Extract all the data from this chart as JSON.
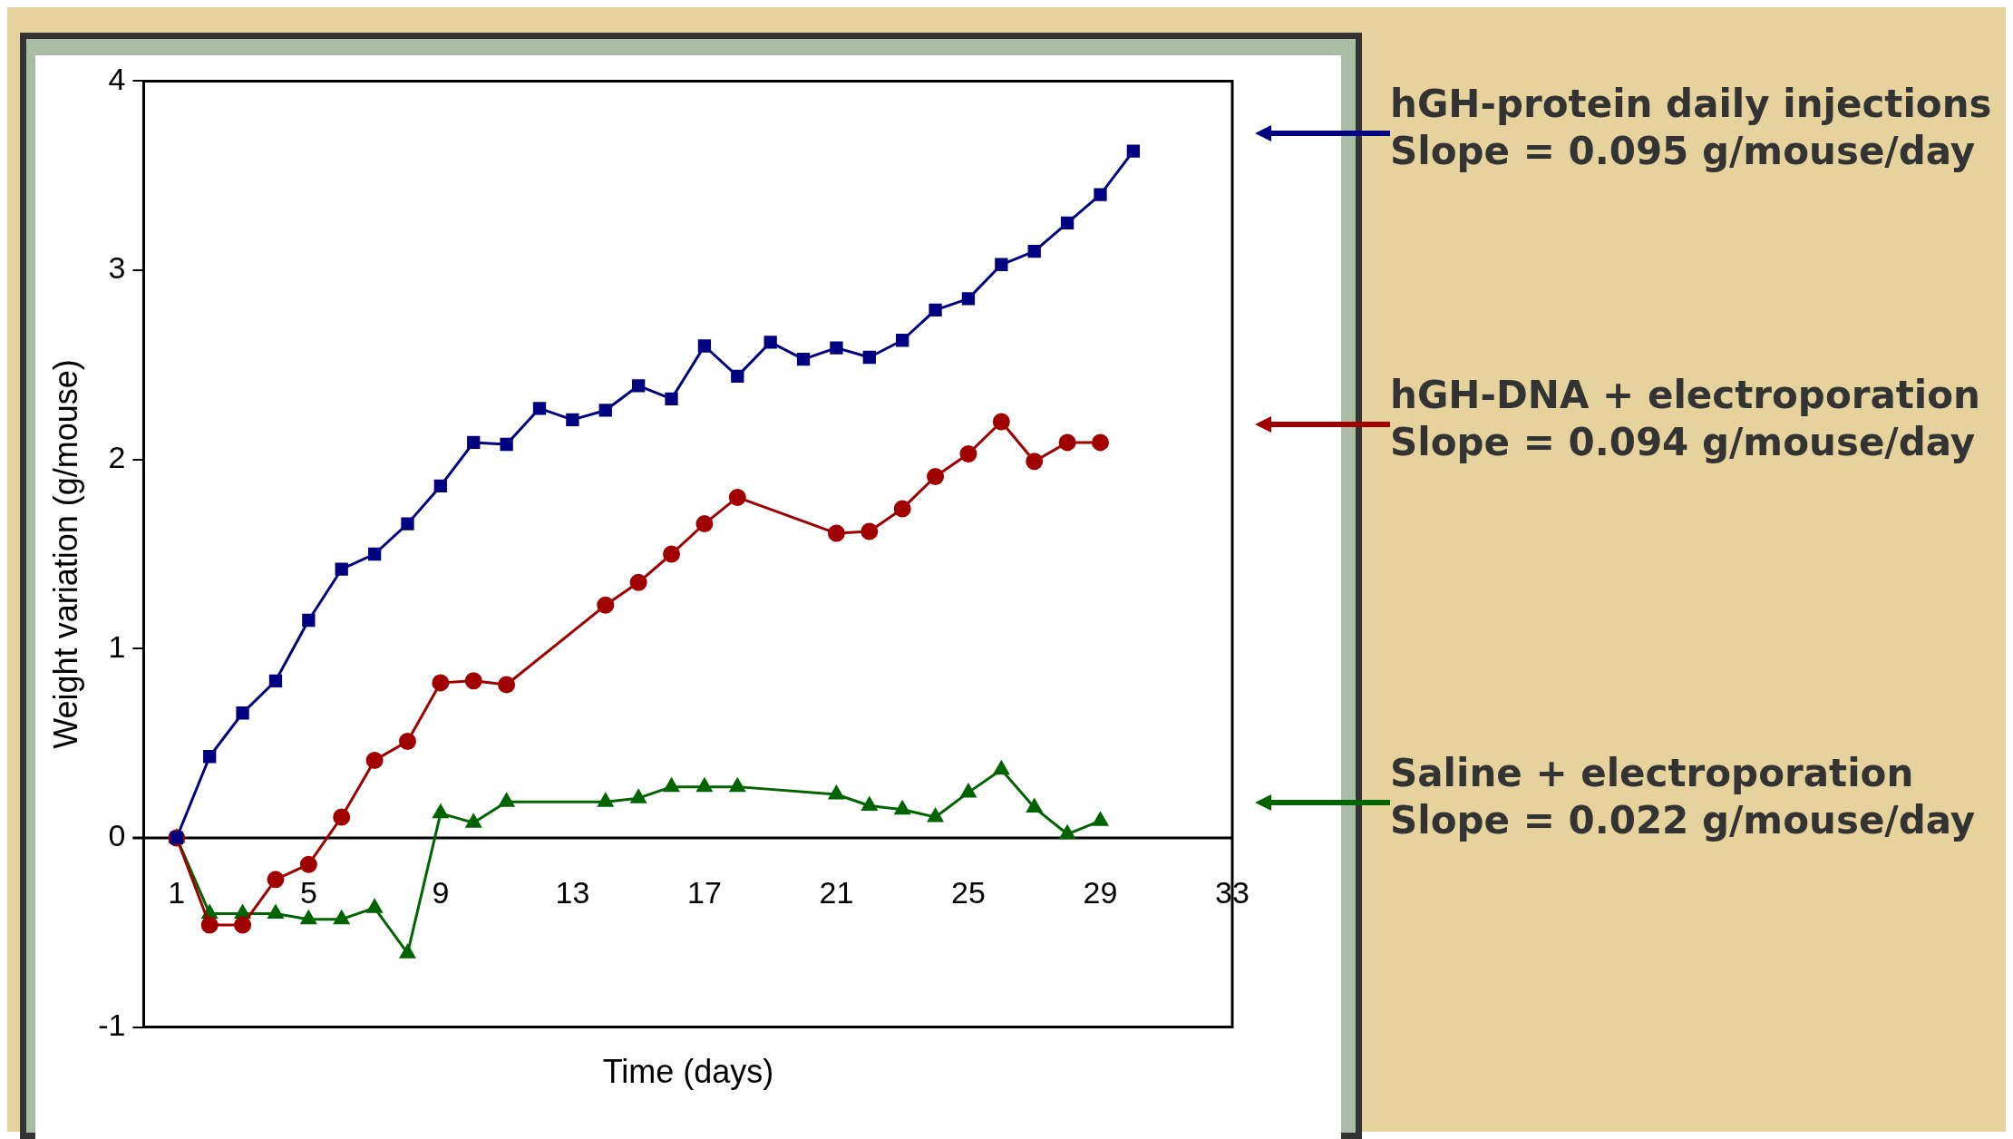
{
  "chart_data": {
    "type": "line",
    "xlabel": "Time (days)",
    "ylabel": "Weight variation (g/mouse)",
    "xlim": [
      0,
      33
    ],
    "xticks": [
      1,
      5,
      9,
      13,
      17,
      21,
      25,
      29,
      33
    ],
    "ylim": [
      -1,
      4
    ],
    "yticks": [
      -1,
      0,
      1,
      2,
      3,
      4
    ],
    "grid": false,
    "legend": false,
    "annotations": [
      "Slope = 0.095 g/mouse/day",
      "Slope = 0.094 g/mouse/day",
      "Slope = 0.022 g/mouse/day"
    ],
    "series": [
      {
        "name": "hGH-protein daily injections",
        "color": "#000080",
        "marker": "square",
        "x": [
          1,
          2,
          3,
          4,
          5,
          6,
          7,
          8,
          9,
          10,
          11,
          12,
          13,
          14,
          15,
          16,
          17,
          18,
          19,
          20,
          21,
          22,
          23,
          24,
          25,
          26,
          27,
          28,
          29,
          30
        ],
        "values": [
          0,
          0.43,
          0.66,
          0.83,
          1.15,
          1.42,
          1.5,
          1.66,
          1.86,
          2.09,
          2.08,
          2.27,
          2.21,
          2.26,
          2.39,
          2.32,
          2.6,
          2.44,
          2.62,
          2.53,
          2.59,
          2.54,
          2.63,
          2.79,
          2.85,
          3.03,
          3.1,
          3.25,
          3.4,
          3.63
        ]
      },
      {
        "name": "hGH-DNA + electroporation",
        "color": "#a00000",
        "marker": "circle",
        "x": [
          1,
          2,
          3,
          4,
          5,
          6,
          7,
          8,
          9,
          10,
          11,
          14,
          15,
          16,
          17,
          18,
          21,
          22,
          23,
          24,
          25,
          26,
          27,
          28,
          29
        ],
        "values": [
          0,
          -0.46,
          -0.46,
          -0.22,
          -0.14,
          0.11,
          0.41,
          0.51,
          0.82,
          0.83,
          0.81,
          1.23,
          1.35,
          1.5,
          1.66,
          1.8,
          1.61,
          1.62,
          1.74,
          1.91,
          2.03,
          2.2,
          1.99,
          2.09,
          2.09
        ]
      },
      {
        "name": "Saline + electroporation",
        "color": "#006400",
        "marker": "triangle",
        "x": [
          1,
          2,
          3,
          4,
          5,
          6,
          7,
          8,
          9,
          10,
          11,
          14,
          15,
          16,
          17,
          18,
          21,
          22,
          23,
          24,
          25,
          26,
          27,
          28,
          29
        ],
        "values": [
          0,
          -0.4,
          -0.4,
          -0.4,
          -0.43,
          -0.43,
          -0.37,
          -0.61,
          0.13,
          0.08,
          0.19,
          0.19,
          0.21,
          0.27,
          0.27,
          0.27,
          0.23,
          0.17,
          0.15,
          0.11,
          0.24,
          0.36,
          0.16,
          0.02,
          0.09
        ]
      }
    ]
  }
}
